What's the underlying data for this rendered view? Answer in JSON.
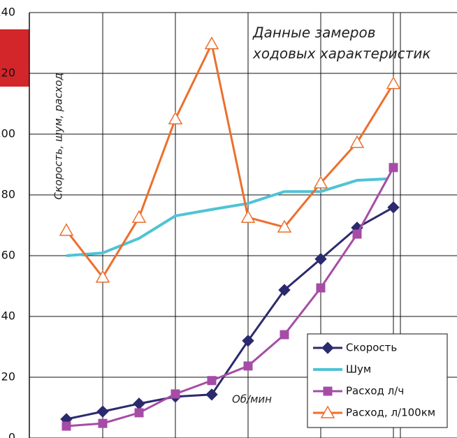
{
  "chart_data": {
    "type": "line",
    "title": [
      "Данные замеров",
      "ходовых характеристик"
    ],
    "y_label": "Скорость, шум, расход",
    "annotation": "Об/мин",
    "categories": [
      null,
      null,
      null,
      null,
      null,
      null,
      null,
      null,
      null,
      null
    ],
    "series": [
      {
        "name": "Скорость",
        "color": "#2b2a6e",
        "marker": "diamond",
        "values": [
          6.2,
          8.7,
          11.3,
          13.6,
          14.3,
          32,
          48.7,
          58.9,
          69.2,
          75.9
        ]
      },
      {
        "name": "Шум",
        "color": "#4fc3d6",
        "marker": "none",
        "values": [
          60,
          60.9,
          65.7,
          73.1,
          75.2,
          77.2,
          81.1,
          81.1,
          84.8,
          85.3
        ]
      },
      {
        "name": "Расход л/ч",
        "color": "#a64ca6",
        "marker": "square",
        "values": [
          3.9,
          4.8,
          8.3,
          14.5,
          18.9,
          23.7,
          34,
          49.4,
          67.1,
          89
        ]
      },
      {
        "name": "Расход, л/100км",
        "color": "#ec6f2d",
        "marker": "triangle",
        "values": [
          68.3,
          52.9,
          72.6,
          105,
          129.7,
          72.6,
          69.4,
          83.9,
          97.2,
          116.6
        ]
      }
    ],
    "ylim": [
      0,
      140
    ],
    "yticks": [
      0,
      20,
      40,
      60,
      80,
      100,
      120,
      140
    ],
    "grid": true,
    "legend": "lower right"
  }
}
